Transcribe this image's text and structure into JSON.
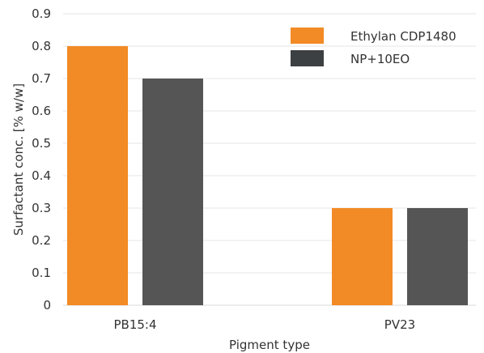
{
  "chart_data": {
    "type": "bar",
    "title": "",
    "xlabel": "Pigment type",
    "ylabel": "Surfactant conc. [% w/w]",
    "ylim": [
      0,
      0.9
    ],
    "yticks": [
      0,
      0.1,
      0.2,
      0.3,
      0.4,
      0.5,
      0.6,
      0.7,
      0.8,
      0.9
    ],
    "ytick_labels": [
      "0",
      "0.1",
      "0.2",
      "0.3",
      "0.4",
      "0.5",
      "0.6",
      "0.7",
      "0.8",
      "0.9"
    ],
    "categories": [
      "PB15:4",
      "PV23"
    ],
    "series": [
      {
        "name": "Ethylan CDP1480",
        "values": [
          0.8,
          0.3
        ],
        "color": "#f28a25"
      },
      {
        "name": "NP+10EO",
        "values": [
          0.7,
          0.3
        ],
        "color": "#555555"
      }
    ],
    "legend_position": "top-right",
    "grid": true,
    "legend_swatch_colors": [
      "#f28a25",
      "#3d4042"
    ]
  }
}
